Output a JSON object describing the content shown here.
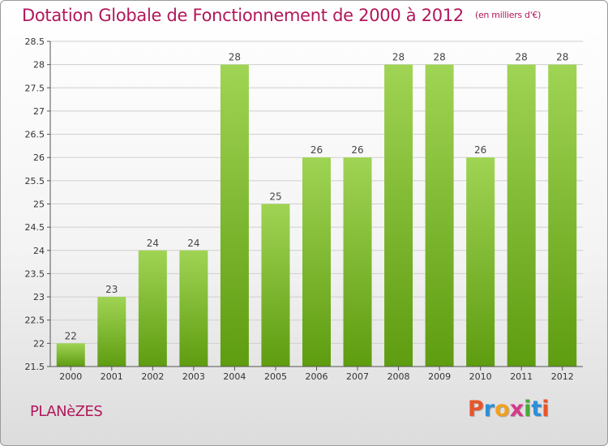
{
  "header": {
    "title": "Dotation Globale de Fonctionnement de 2000 à 2012",
    "unit": "(en milliers d'€)"
  },
  "footer": {
    "commune": "PLANèZES",
    "logo_text": "Proxiti",
    "logo_colors": [
      "#e8552a",
      "#2a8fd8",
      "#f0a020",
      "#d63a8a",
      "#4aa83c",
      "#2a8fd8",
      "#e8552a"
    ]
  },
  "colors": {
    "bar_top": "#a0d454",
    "bar_bottom": "#5e9c10",
    "grid": "#cfcfcf",
    "axis": "#555555",
    "title": "#b2175b"
  },
  "chart_data": {
    "type": "bar",
    "categories": [
      "2000",
      "2001",
      "2002",
      "2003",
      "2004",
      "2005",
      "2006",
      "2007",
      "2008",
      "2009",
      "2010",
      "2011",
      "2012"
    ],
    "values": [
      22,
      23,
      24,
      24,
      28,
      25,
      26,
      26,
      28,
      28,
      26,
      28,
      28
    ],
    "ylim": [
      21.5,
      28.5
    ],
    "yticks": [
      21.5,
      22,
      22.5,
      23,
      23.5,
      24,
      24.5,
      25,
      25.5,
      26,
      26.5,
      27,
      27.5,
      28,
      28.5
    ],
    "grid": true,
    "legend": "none"
  }
}
